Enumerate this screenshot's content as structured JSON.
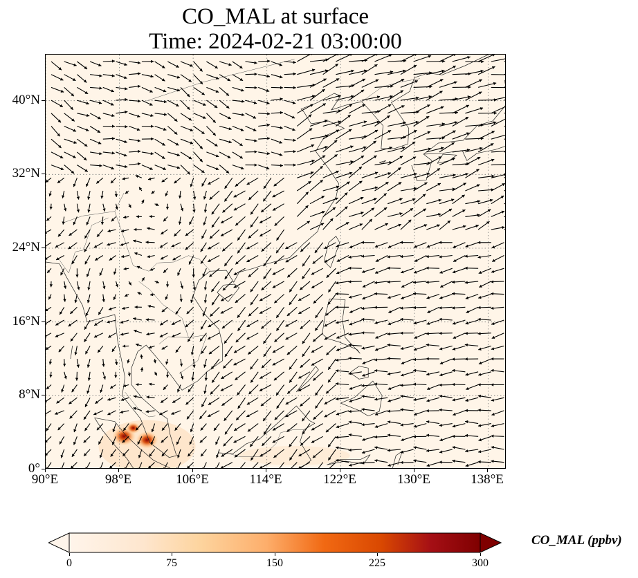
{
  "title_line1": "CO_MAL at surface",
  "title_line2": "Time: 2024-02-21 03:00:00",
  "map": {
    "extent": {
      "lon_min": 90,
      "lon_max": 140,
      "lat_min": 0,
      "lat_max": 45
    },
    "xticks": [
      "90°E",
      "98°E",
      "106°E",
      "114°E",
      "122°E",
      "130°E",
      "138°E"
    ],
    "yticks": [
      "0°",
      "8°N",
      "16°N",
      "24°N",
      "32°N",
      "40°N"
    ],
    "background_color": "#fff5e8",
    "gridlines": "dotted",
    "wind_vectors": "shown"
  },
  "colorbar": {
    "label": "CO_MAL (ppbv)",
    "ticks": [
      "0",
      "75",
      "150",
      "225",
      "300"
    ],
    "min": 0,
    "max": 300,
    "colormap": [
      "#fff5eb",
      "#fdd49e",
      "#fdae6b",
      "#f16913",
      "#d94801",
      "#a50f15",
      "#7f0000"
    ],
    "extend": "both"
  },
  "hotspots": [
    {
      "lon": 98.5,
      "lat": 3.6,
      "value": 220
    },
    {
      "lon": 101.0,
      "lat": 3.2,
      "value": 200
    },
    {
      "lon": 99.5,
      "lat": 4.5,
      "value": 90
    }
  ]
}
